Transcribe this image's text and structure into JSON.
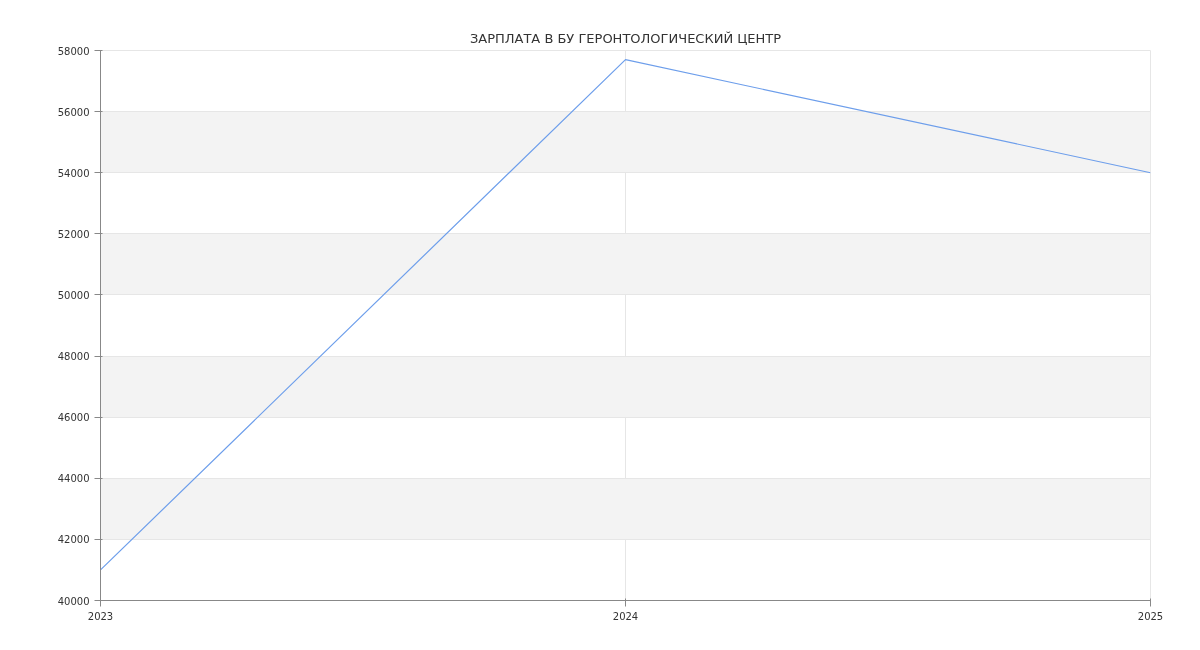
{
  "chart_data": {
    "type": "line",
    "title": "ЗАРПЛАТА В БУ ГЕРОНТОЛОГИЧЕСКИЙ ЦЕНТР",
    "x": [
      2023,
      2024,
      2025
    ],
    "series": [
      {
        "color": "#6d9eeb",
        "values": [
          41000,
          57700,
          54000
        ]
      }
    ],
    "xlim": [
      2023,
      2025
    ],
    "xticks": [
      2023,
      2024,
      2025
    ],
    "ylim": [
      40000,
      58000
    ],
    "yticks": [
      40000,
      42000,
      44000,
      46000,
      48000,
      50000,
      52000,
      54000,
      56000,
      58000
    ],
    "grid": true,
    "marker": "none",
    "line_style": "solid"
  }
}
